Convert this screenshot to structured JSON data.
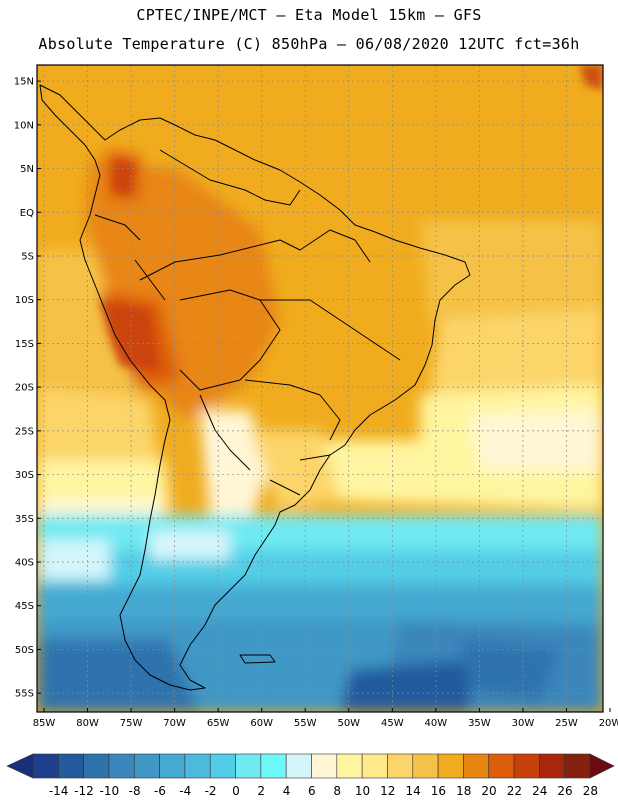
{
  "header": {
    "line1": "CPTEC/INPE/MCT –  Eta Model 15km – GFS",
    "line2": "Absolute Temperature (C) 850hPa – 06/08/2020 12UTC fct=36h"
  },
  "map": {
    "lat_labels": [
      "15N",
      "10N",
      "5N",
      "EQ",
      "5S",
      "10S",
      "15S",
      "20S",
      "25S",
      "30S",
      "35S",
      "40S",
      "45S",
      "50S",
      "55S"
    ],
    "lon_labels": [
      "85W",
      "80W",
      "75W",
      "70W",
      "65W",
      "60W",
      "55W",
      "50W",
      "45W",
      "40W",
      "35W",
      "30W",
      "25W",
      "20W"
    ],
    "lat_range": [
      -57.5,
      16.5
    ],
    "lon_range": [
      -85,
      -20
    ]
  },
  "colorbar": {
    "labels": [
      "-14",
      "-12",
      "-10",
      "-8",
      "-6",
      "-4",
      "-2",
      "0",
      "2",
      "4",
      "6",
      "8",
      "10",
      "12",
      "14",
      "16",
      "18",
      "20",
      "22",
      "24",
      "26",
      "28"
    ],
    "colors": [
      "#1f3f8f",
      "#235a9e",
      "#2f73ad",
      "#3b86bb",
      "#3f98c6",
      "#45a9d2",
      "#4cbadc",
      "#52cde6",
      "#6fe9f2",
      "#6ff8f8",
      "#d4f6fb",
      "#fff6d6",
      "#fff5a0",
      "#ffe98a",
      "#fcd56a",
      "#f5c247",
      "#f0ac1e",
      "#e88614",
      "#dd5c0a",
      "#c8400b",
      "#a8270c",
      "#86200f"
    ],
    "low_arrow_color": "#1a2f7a",
    "high_arrow_color": "#6b0a12"
  }
}
